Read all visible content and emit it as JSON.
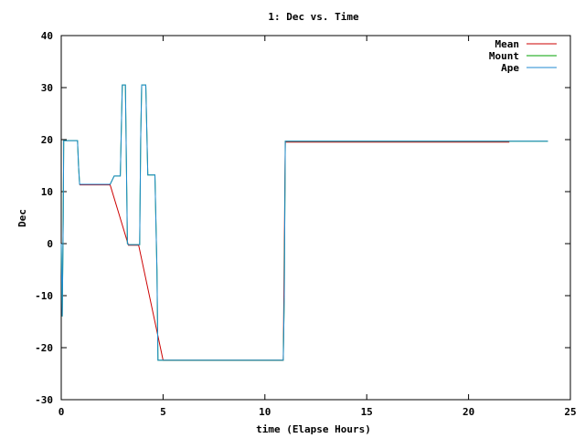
{
  "chart_data": {
    "type": "line",
    "title": "1: Dec vs. Time",
    "xlabel": "time (Elapse Hours)",
    "ylabel": "Dec",
    "xlim": [
      0,
      25
    ],
    "ylim": [
      -30,
      40
    ],
    "xticks": [
      0,
      5,
      10,
      15,
      20,
      25
    ],
    "yticks": [
      -30,
      -20,
      -10,
      0,
      10,
      20,
      30,
      40
    ],
    "grid": false,
    "legend_position": "top-right",
    "series": [
      {
        "name": "Mean",
        "color": "#cc0000",
        "points": [
          [
            0.9,
            11.3
          ],
          [
            2.4,
            11.3
          ],
          [
            3.3,
            -0.3
          ],
          [
            3.8,
            -0.3
          ],
          [
            5.0,
            -22.4
          ],
          [
            10.9,
            -22.4
          ],
          [
            11.0,
            19.5
          ],
          [
            22.0,
            19.5
          ]
        ]
      },
      {
        "name": "Mount",
        "color": "#00a000",
        "points": [
          [
            0.0,
            0.0
          ],
          [
            0.05,
            -14.0
          ],
          [
            0.1,
            5.0
          ],
          [
            0.12,
            19.8
          ],
          [
            0.8,
            19.8
          ],
          [
            0.85,
            15.0
          ],
          [
            0.9,
            11.4
          ],
          [
            2.4,
            11.4
          ],
          [
            2.6,
            13.0
          ],
          [
            2.9,
            13.0
          ],
          [
            3.0,
            30.5
          ],
          [
            3.15,
            30.5
          ],
          [
            3.25,
            0.0
          ],
          [
            3.3,
            -0.2
          ],
          [
            3.85,
            -0.2
          ],
          [
            3.9,
            20.0
          ],
          [
            3.95,
            30.5
          ],
          [
            4.15,
            30.5
          ],
          [
            4.25,
            13.2
          ],
          [
            4.6,
            13.2
          ],
          [
            4.7,
            -5.0
          ],
          [
            4.75,
            -22.4
          ],
          [
            10.9,
            -22.4
          ],
          [
            10.95,
            -10.0
          ],
          [
            11.0,
            19.7
          ],
          [
            23.9,
            19.7
          ]
        ]
      },
      {
        "name": "Ape",
        "color": "#1f8ad0",
        "points": [
          [
            0.0,
            0.0
          ],
          [
            0.05,
            -14.0
          ],
          [
            0.1,
            5.0
          ],
          [
            0.12,
            19.8
          ],
          [
            0.8,
            19.8
          ],
          [
            0.85,
            15.0
          ],
          [
            0.9,
            11.4
          ],
          [
            2.4,
            11.4
          ],
          [
            2.6,
            13.0
          ],
          [
            2.9,
            13.0
          ],
          [
            3.0,
            30.5
          ],
          [
            3.15,
            30.5
          ],
          [
            3.25,
            0.0
          ],
          [
            3.3,
            -0.2
          ],
          [
            3.85,
            -0.2
          ],
          [
            3.9,
            20.0
          ],
          [
            3.95,
            30.5
          ],
          [
            4.15,
            30.5
          ],
          [
            4.25,
            13.2
          ],
          [
            4.6,
            13.2
          ],
          [
            4.7,
            -5.0
          ],
          [
            4.75,
            -22.4
          ],
          [
            10.9,
            -22.4
          ],
          [
            10.95,
            -10.0
          ],
          [
            11.0,
            19.7
          ],
          [
            23.9,
            19.7
          ]
        ]
      }
    ]
  }
}
